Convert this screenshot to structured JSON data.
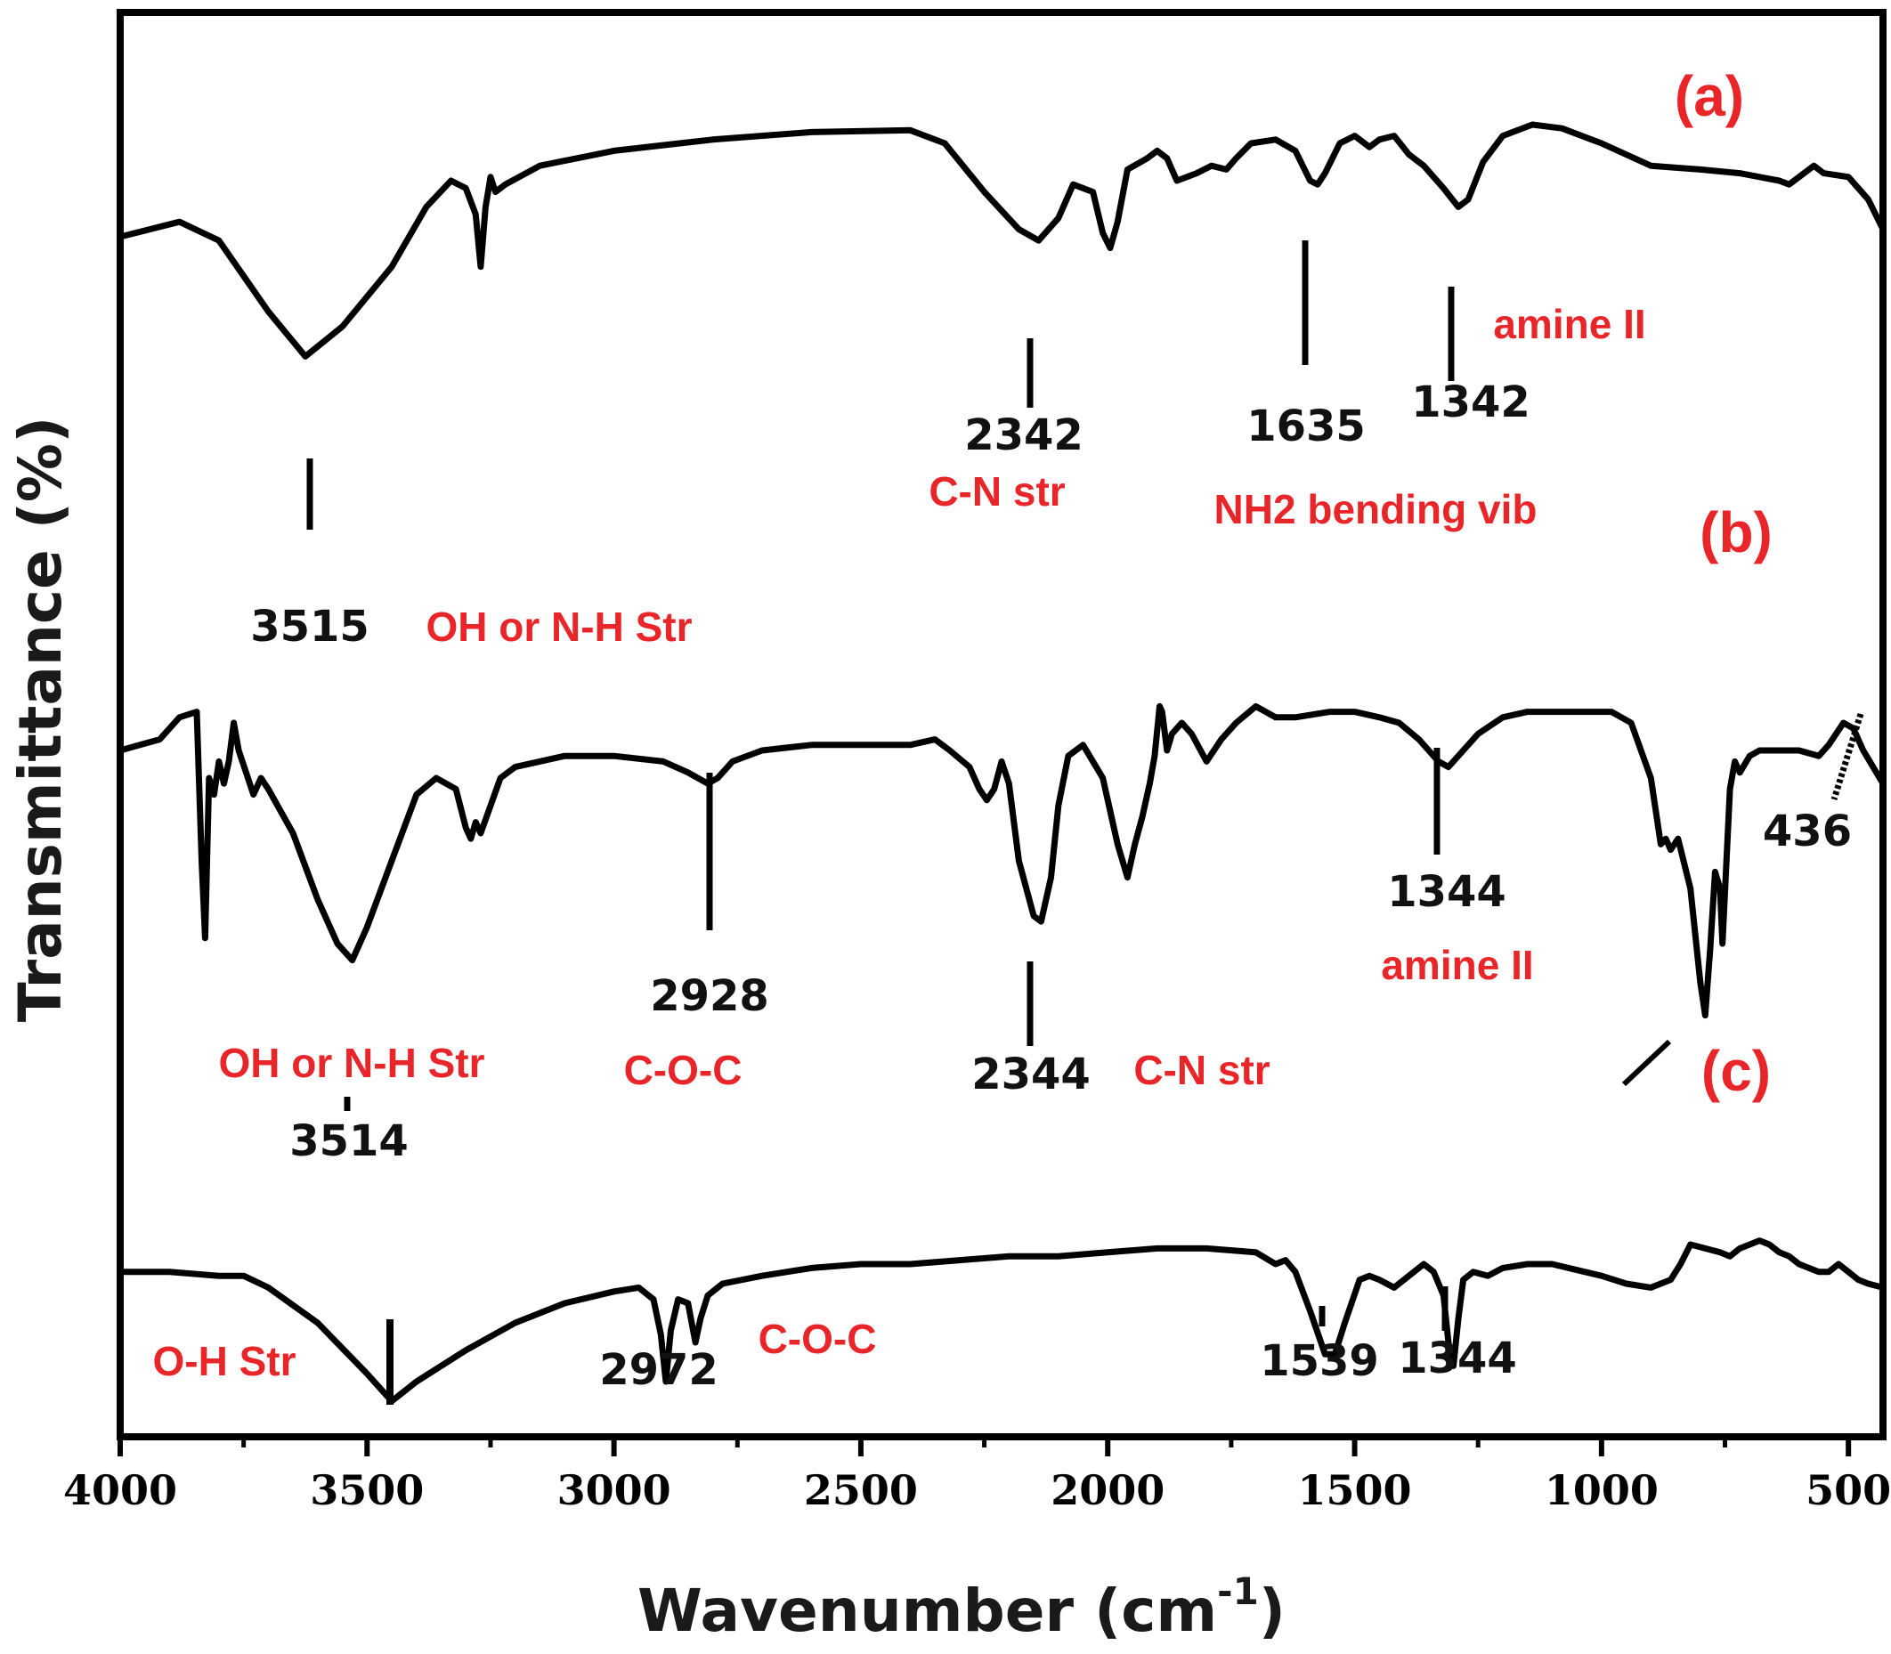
{
  "chart_data": {
    "type": "line",
    "xlabel": "Wavenumber (cm",
    "xlabel_sup": "-1",
    "xlabel_close": ")",
    "ylabel": "Transmittance (%)",
    "xlim": [
      4000,
      430
    ],
    "x_reversed": true,
    "x_ticks": [
      4000,
      3500,
      3000,
      2500,
      2000,
      1500,
      1000,
      500
    ],
    "x_tick_labels": [
      "4000",
      "3500",
      "3000",
      "2500",
      "2000",
      "1500",
      "1000",
      "500"
    ],
    "y_ticks_shown": false,
    "grid": false,
    "line_color": "#000000",
    "note_color": "#e8262a",
    "series": [
      {
        "tag": "(a)",
        "points": [
          [
            4000,
            0.7
          ],
          [
            3880,
            0.74
          ],
          [
            3800,
            0.69
          ],
          [
            3700,
            0.5
          ],
          [
            3625,
            0.38
          ],
          [
            3550,
            0.46
          ],
          [
            3450,
            0.62
          ],
          [
            3380,
            0.78
          ],
          [
            3330,
            0.85
          ],
          [
            3300,
            0.83
          ],
          [
            3280,
            0.76
          ],
          [
            3270,
            0.62
          ],
          [
            3260,
            0.78
          ],
          [
            3250,
            0.86
          ],
          [
            3240,
            0.82
          ],
          [
            3220,
            0.84
          ],
          [
            3150,
            0.89
          ],
          [
            3000,
            0.93
          ],
          [
            2800,
            0.96
          ],
          [
            2600,
            0.98
          ],
          [
            2400,
            0.985
          ],
          [
            2330,
            0.95
          ],
          [
            2250,
            0.82
          ],
          [
            2180,
            0.72
          ],
          [
            2140,
            0.69
          ],
          [
            2100,
            0.75
          ],
          [
            2070,
            0.84
          ],
          [
            2030,
            0.82
          ],
          [
            2010,
            0.71
          ],
          [
            1995,
            0.67
          ],
          [
            1980,
            0.74
          ],
          [
            1960,
            0.88
          ],
          [
            1920,
            0.91
          ],
          [
            1900,
            0.93
          ],
          [
            1880,
            0.91
          ],
          [
            1860,
            0.85
          ],
          [
            1820,
            0.87
          ],
          [
            1790,
            0.89
          ],
          [
            1760,
            0.88
          ],
          [
            1740,
            0.91
          ],
          [
            1710,
            0.95
          ],
          [
            1660,
            0.96
          ],
          [
            1620,
            0.93
          ],
          [
            1590,
            0.85
          ],
          [
            1575,
            0.84
          ],
          [
            1560,
            0.87
          ],
          [
            1530,
            0.95
          ],
          [
            1500,
            0.97
          ],
          [
            1470,
            0.94
          ],
          [
            1450,
            0.96
          ],
          [
            1420,
            0.97
          ],
          [
            1390,
            0.92
          ],
          [
            1360,
            0.89
          ],
          [
            1320,
            0.83
          ],
          [
            1290,
            0.78
          ],
          [
            1270,
            0.8
          ],
          [
            1240,
            0.9
          ],
          [
            1200,
            0.97
          ],
          [
            1140,
            1.0
          ],
          [
            1080,
            0.99
          ],
          [
            1000,
            0.95
          ],
          [
            900,
            0.89
          ],
          [
            800,
            0.88
          ],
          [
            720,
            0.87
          ],
          [
            680,
            0.86
          ],
          [
            640,
            0.85
          ],
          [
            620,
            0.84
          ],
          [
            600,
            0.86
          ],
          [
            570,
            0.89
          ],
          [
            550,
            0.87
          ],
          [
            500,
            0.86
          ],
          [
            460,
            0.8
          ],
          [
            430,
            0.72
          ]
        ]
      },
      {
        "tag": "(b)",
        "points": [
          [
            4000,
            0.6
          ],
          [
            3960,
            0.61
          ],
          [
            3920,
            0.62
          ],
          [
            3880,
            0.66
          ],
          [
            3845,
            0.67
          ],
          [
            3835,
            0.4
          ],
          [
            3828,
            0.26
          ],
          [
            3820,
            0.55
          ],
          [
            3810,
            0.52
          ],
          [
            3800,
            0.58
          ],
          [
            3790,
            0.54
          ],
          [
            3780,
            0.58
          ],
          [
            3770,
            0.65
          ],
          [
            3760,
            0.6
          ],
          [
            3745,
            0.56
          ],
          [
            3730,
            0.52
          ],
          [
            3715,
            0.55
          ],
          [
            3700,
            0.53
          ],
          [
            3650,
            0.45
          ],
          [
            3600,
            0.33
          ],
          [
            3560,
            0.25
          ],
          [
            3530,
            0.22
          ],
          [
            3500,
            0.28
          ],
          [
            3450,
            0.4
          ],
          [
            3400,
            0.52
          ],
          [
            3360,
            0.55
          ],
          [
            3320,
            0.53
          ],
          [
            3300,
            0.46
          ],
          [
            3290,
            0.44
          ],
          [
            3280,
            0.47
          ],
          [
            3270,
            0.45
          ],
          [
            3250,
            0.5
          ],
          [
            3230,
            0.55
          ],
          [
            3200,
            0.57
          ],
          [
            3100,
            0.59
          ],
          [
            3000,
            0.59
          ],
          [
            2900,
            0.58
          ],
          [
            2850,
            0.56
          ],
          [
            2810,
            0.54
          ],
          [
            2790,
            0.55
          ],
          [
            2760,
            0.58
          ],
          [
            2700,
            0.6
          ],
          [
            2600,
            0.61
          ],
          [
            2500,
            0.61
          ],
          [
            2400,
            0.61
          ],
          [
            2350,
            0.62
          ],
          [
            2320,
            0.6
          ],
          [
            2280,
            0.57
          ],
          [
            2260,
            0.53
          ],
          [
            2245,
            0.51
          ],
          [
            2230,
            0.53
          ],
          [
            2215,
            0.58
          ],
          [
            2200,
            0.54
          ],
          [
            2180,
            0.4
          ],
          [
            2150,
            0.3
          ],
          [
            2135,
            0.29
          ],
          [
            2115,
            0.37
          ],
          [
            2100,
            0.5
          ],
          [
            2080,
            0.59
          ],
          [
            2050,
            0.61
          ],
          [
            2010,
            0.55
          ],
          [
            1980,
            0.43
          ],
          [
            1960,
            0.37
          ],
          [
            1945,
            0.43
          ],
          [
            1930,
            0.48
          ],
          [
            1915,
            0.54
          ],
          [
            1905,
            0.59
          ],
          [
            1895,
            0.68
          ],
          [
            1890,
            0.67
          ],
          [
            1880,
            0.6
          ],
          [
            1870,
            0.63
          ],
          [
            1850,
            0.65
          ],
          [
            1830,
            0.63
          ],
          [
            1800,
            0.58
          ],
          [
            1770,
            0.62
          ],
          [
            1740,
            0.65
          ],
          [
            1700,
            0.68
          ],
          [
            1660,
            0.66
          ],
          [
            1620,
            0.66
          ],
          [
            1550,
            0.67
          ],
          [
            1500,
            0.67
          ],
          [
            1450,
            0.66
          ],
          [
            1410,
            0.65
          ],
          [
            1370,
            0.62
          ],
          [
            1330,
            0.58
          ],
          [
            1310,
            0.57
          ],
          [
            1290,
            0.59
          ],
          [
            1250,
            0.63
          ],
          [
            1200,
            0.66
          ],
          [
            1150,
            0.67
          ],
          [
            1050,
            0.67
          ],
          [
            980,
            0.67
          ],
          [
            940,
            0.65
          ],
          [
            900,
            0.55
          ],
          [
            880,
            0.43
          ],
          [
            870,
            0.44
          ],
          [
            860,
            0.42
          ],
          [
            845,
            0.44
          ],
          [
            820,
            0.35
          ],
          [
            800,
            0.18
          ],
          [
            790,
            0.12
          ],
          [
            780,
            0.24
          ],
          [
            770,
            0.38
          ],
          [
            760,
            0.35
          ],
          [
            755,
            0.25
          ],
          [
            748,
            0.38
          ],
          [
            740,
            0.53
          ],
          [
            730,
            0.58
          ],
          [
            720,
            0.56
          ],
          [
            700,
            0.59
          ],
          [
            680,
            0.6
          ],
          [
            600,
            0.6
          ],
          [
            560,
            0.59
          ],
          [
            540,
            0.61
          ],
          [
            510,
            0.65
          ],
          [
            490,
            0.64
          ],
          [
            470,
            0.6
          ],
          [
            450,
            0.57
          ],
          [
            430,
            0.54
          ]
        ]
      },
      {
        "tag": "(c)",
        "points": [
          [
            4000,
            0.48
          ],
          [
            3900,
            0.48
          ],
          [
            3800,
            0.47
          ],
          [
            3750,
            0.47
          ],
          [
            3700,
            0.44
          ],
          [
            3600,
            0.35
          ],
          [
            3500,
            0.22
          ],
          [
            3450,
            0.15
          ],
          [
            3400,
            0.2
          ],
          [
            3300,
            0.28
          ],
          [
            3200,
            0.35
          ],
          [
            3100,
            0.4
          ],
          [
            3000,
            0.43
          ],
          [
            2950,
            0.44
          ],
          [
            2920,
            0.41
          ],
          [
            2905,
            0.32
          ],
          [
            2895,
            0.2
          ],
          [
            2885,
            0.33
          ],
          [
            2870,
            0.41
          ],
          [
            2850,
            0.4
          ],
          [
            2835,
            0.3
          ],
          [
            2825,
            0.36
          ],
          [
            2810,
            0.42
          ],
          [
            2780,
            0.45
          ],
          [
            2700,
            0.47
          ],
          [
            2600,
            0.49
          ],
          [
            2500,
            0.5
          ],
          [
            2400,
            0.5
          ],
          [
            2300,
            0.51
          ],
          [
            2200,
            0.52
          ],
          [
            2100,
            0.52
          ],
          [
            2000,
            0.53
          ],
          [
            1900,
            0.54
          ],
          [
            1800,
            0.54
          ],
          [
            1700,
            0.53
          ],
          [
            1660,
            0.5
          ],
          [
            1640,
            0.51
          ],
          [
            1620,
            0.48
          ],
          [
            1590,
            0.38
          ],
          [
            1560,
            0.27
          ],
          [
            1540,
            0.27
          ],
          [
            1520,
            0.35
          ],
          [
            1490,
            0.46
          ],
          [
            1470,
            0.47
          ],
          [
            1450,
            0.46
          ],
          [
            1420,
            0.44
          ],
          [
            1400,
            0.46
          ],
          [
            1380,
            0.48
          ],
          [
            1360,
            0.5
          ],
          [
            1340,
            0.48
          ],
          [
            1320,
            0.42
          ],
          [
            1310,
            0.3
          ],
          [
            1300,
            0.24
          ],
          [
            1290,
            0.36
          ],
          [
            1280,
            0.46
          ],
          [
            1260,
            0.48
          ],
          [
            1230,
            0.47
          ],
          [
            1200,
            0.49
          ],
          [
            1150,
            0.5
          ],
          [
            1100,
            0.5
          ],
          [
            1000,
            0.47
          ],
          [
            950,
            0.45
          ],
          [
            900,
            0.44
          ],
          [
            860,
            0.46
          ],
          [
            840,
            0.5
          ],
          [
            820,
            0.55
          ],
          [
            790,
            0.54
          ],
          [
            760,
            0.53
          ],
          [
            740,
            0.52
          ],
          [
            720,
            0.54
          ],
          [
            700,
            0.55
          ],
          [
            680,
            0.56
          ],
          [
            660,
            0.55
          ],
          [
            640,
            0.53
          ],
          [
            620,
            0.52
          ],
          [
            600,
            0.5
          ],
          [
            580,
            0.49
          ],
          [
            560,
            0.48
          ],
          [
            540,
            0.48
          ],
          [
            520,
            0.5
          ],
          [
            500,
            0.48
          ],
          [
            480,
            0.46
          ],
          [
            460,
            0.45
          ],
          [
            430,
            0.44
          ]
        ]
      }
    ],
    "peak_labels": [
      {
        "text": "3515",
        "x": 3520,
        "series": 0
      },
      {
        "text": "2342",
        "x": 2140,
        "series": 0
      },
      {
        "text": "1635",
        "x": 1580,
        "series": 0
      },
      {
        "text": "1342",
        "x": 1290,
        "series": 0
      },
      {
        "text": "2928",
        "x": 2800,
        "series": 1
      },
      {
        "text": "3514",
        "x": 3530,
        "series": 1
      },
      {
        "text": "2344",
        "x": 2135,
        "series": 1
      },
      {
        "text": "1344",
        "x": 1320,
        "series": 1
      },
      {
        "text": "436",
        "x": 475,
        "series": 1
      },
      {
        "text": "2972",
        "x": 2890,
        "series": 2
      },
      {
        "text": "1539",
        "x": 1540,
        "series": 2
      },
      {
        "text": "1344",
        "x": 1300,
        "series": 2
      }
    ],
    "annotations": [
      {
        "text": "amine II"
      },
      {
        "text": "C-N str"
      },
      {
        "text": "NH2 bending vib"
      },
      {
        "text": "OH or N-H Str"
      },
      {
        "text": "OH or N-H Str"
      },
      {
        "text": "C-O-C"
      },
      {
        "text": "C-N str"
      },
      {
        "text": "amine II"
      },
      {
        "text": "O-H Str"
      },
      {
        "text": "C-O-C"
      }
    ]
  }
}
